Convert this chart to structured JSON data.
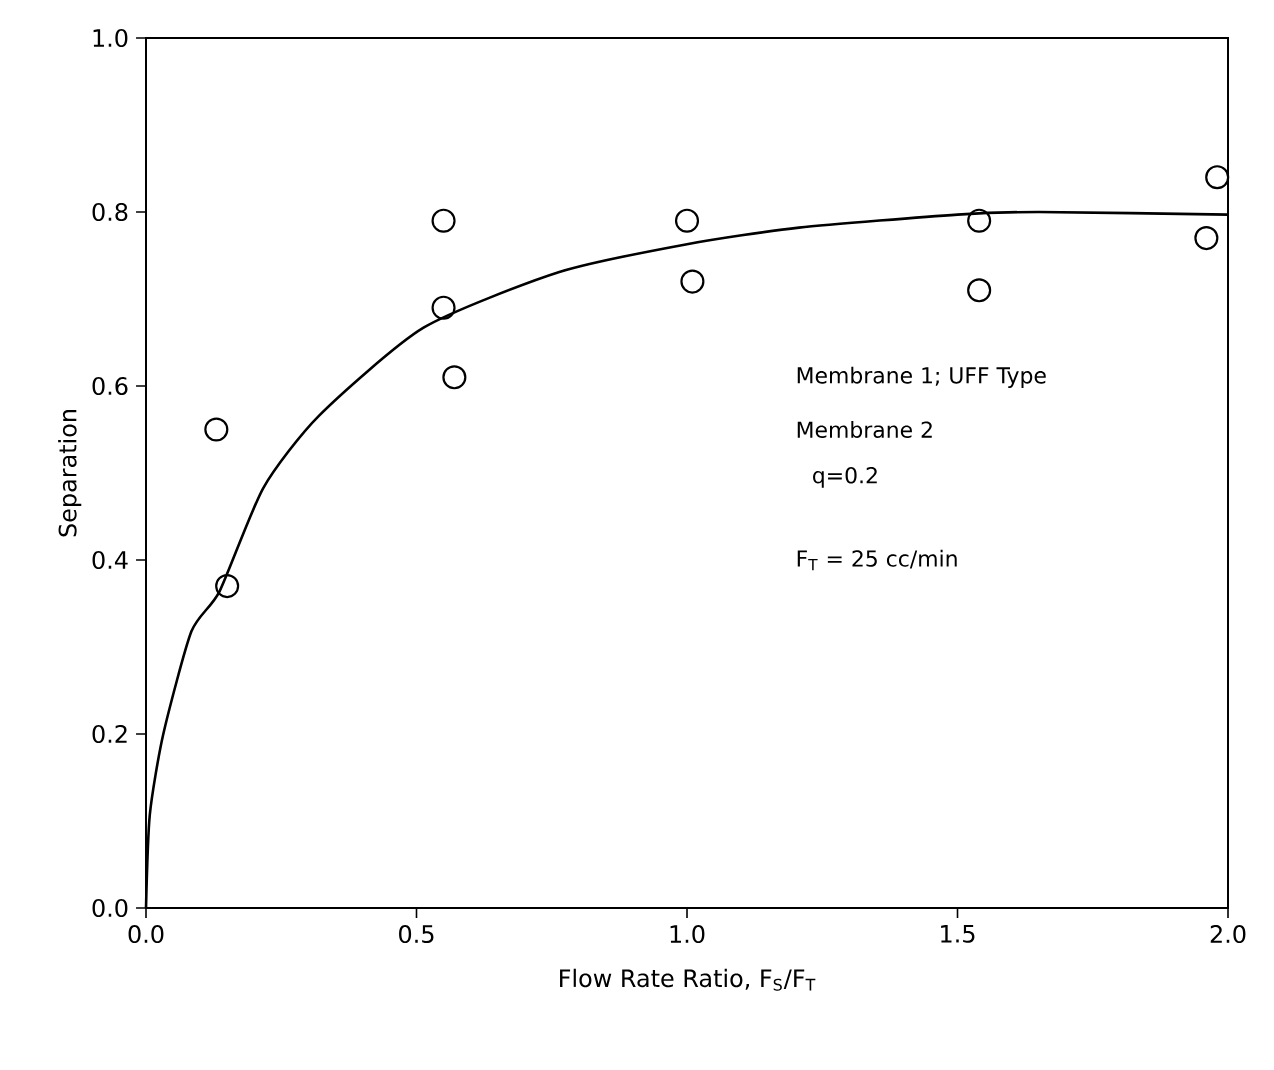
{
  "chart_data": {
    "type": "scatter",
    "xlabel": "Flow Rate Ratio, F$_{S}$/F$_{T}$",
    "ylabel": "Separation",
    "xlim": [
      0,
      2
    ],
    "ylim": [
      0,
      1
    ],
    "xticks": [
      {
        "value": 0,
        "label": "0.0"
      },
      {
        "value": 0.5,
        "label": "0.5"
      },
      {
        "value": 1,
        "label": "1.0"
      },
      {
        "value": 1.5,
        "label": "1.5"
      },
      {
        "value": 2,
        "label": "2.0"
      }
    ],
    "yticks": [
      {
        "value": 0,
        "label": "0.0"
      },
      {
        "value": 0.2,
        "label": "0.2"
      },
      {
        "value": 0.4,
        "label": "0.4"
      },
      {
        "value": 0.6,
        "label": "0.6"
      },
      {
        "value": 0.8,
        "label": "0.8"
      },
      {
        "value": 1,
        "label": "1.0"
      }
    ],
    "grid": false,
    "series": [
      {
        "marker": "circle",
        "color": "#000000",
        "x": [
          0.13,
          0.15,
          0.55,
          0.55,
          0.57,
          1.0,
          1.01,
          1.54,
          1.54,
          1.98,
          1.96
        ],
        "values": [
          0.55,
          0.37,
          0.79,
          0.69,
          0.61,
          0.79,
          0.72,
          0.79,
          0.71,
          0.84,
          0.77
        ]
      },
      {
        "type": "line",
        "marker": "none",
        "line_style": "solid",
        "color": "#000000",
        "x": [
          0,
          0.007,
          0.032,
          0.084,
          0.136,
          0.217,
          0.32,
          0.513,
          0.764,
          1.0,
          1.207,
          1.5,
          1.65,
          2.0
        ],
        "values": [
          0,
          0.107,
          0.2,
          0.318,
          0.364,
          0.483,
          0.566,
          0.667,
          0.731,
          0.763,
          0.782,
          0.797,
          0.8,
          0.797
        ]
      }
    ],
    "annotations": [
      "Membrane 1; UFF Type",
      "Membrane 2",
      "q=0.2",
      "F$_{T}$ = 25 cc/min"
    ]
  }
}
